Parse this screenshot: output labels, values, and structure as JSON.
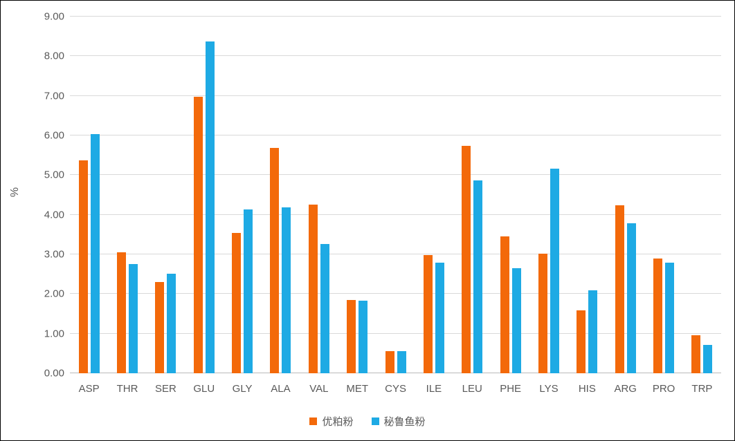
{
  "chart_data": {
    "type": "bar",
    "title": "",
    "xlabel": "",
    "ylabel": "%",
    "ylim": [
      0,
      9
    ],
    "ytick_step": 1,
    "ytick_labels": [
      "0.00",
      "1.00",
      "2.00",
      "3.00",
      "4.00",
      "5.00",
      "6.00",
      "7.00",
      "8.00",
      "9.00"
    ],
    "grid": true,
    "legend_position": "bottom",
    "categories": [
      "ASP",
      "THR",
      "SER",
      "GLU",
      "GLY",
      "ALA",
      "VAL",
      "MET",
      "CYS",
      "ILE",
      "LEU",
      "PHE",
      "LYS",
      "HIS",
      "ARG",
      "PRO",
      "TRP"
    ],
    "series": [
      {
        "name": "优粕粉",
        "color": "#F3690A",
        "values": [
          5.37,
          3.06,
          2.31,
          6.97,
          3.54,
          5.68,
          4.25,
          1.85,
          0.56,
          2.98,
          5.74,
          3.46,
          3.01,
          1.58,
          4.24,
          2.9,
          0.96
        ]
      },
      {
        "name": "秘鲁鱼粉",
        "color": "#1EAAE4",
        "values": [
          6.04,
          2.76,
          2.51,
          8.37,
          4.13,
          4.19,
          3.26,
          1.84,
          0.56,
          2.79,
          4.86,
          2.66,
          5.17,
          2.1,
          3.78,
          2.79,
          0.71
        ]
      }
    ],
    "colors": {
      "gridline": "#D9D9D9",
      "axis_line": "#B9B9B9",
      "label_text": "#595959"
    }
  }
}
